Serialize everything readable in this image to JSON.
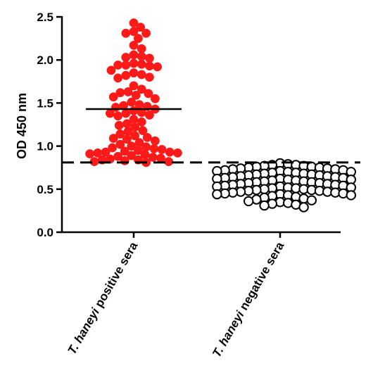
{
  "chart_data": {
    "type": "scatter",
    "subtype": "dot-plot",
    "title": "",
    "xlabel": "",
    "ylabel": "OD 450 nm",
    "ylim": [
      0,
      2.5
    ],
    "yticks": [
      0.0,
      0.5,
      1.0,
      1.5,
      2.0,
      2.5
    ],
    "ytick_labels": [
      "0.0",
      "0.5",
      "1.0",
      "1.5",
      "2.0",
      "2.5"
    ],
    "grid": false,
    "legend": "none",
    "cutoff": 0.81,
    "cutoff_style": "dashed",
    "categories": [
      {
        "italic": "T. haneyi",
        "rest": " positive sera"
      },
      {
        "italic": "T. haneyi",
        "rest": " negative sera"
      }
    ],
    "series": [
      {
        "category_index": 0,
        "marker": "filled-circle",
        "color": "#ff1a1a",
        "mean": 1.43,
        "values": [
          2.43,
          2.38,
          2.33,
          2.31,
          2.31,
          2.25,
          2.17,
          2.13,
          2.06,
          2.04,
          2.03,
          2.02,
          1.96,
          1.95,
          1.94,
          1.94,
          1.93,
          1.92,
          1.88,
          1.85,
          1.83,
          1.82,
          1.8,
          1.79,
          1.7,
          1.66,
          1.63,
          1.62,
          1.61,
          1.59,
          1.57,
          1.55,
          1.51,
          1.48,
          1.47,
          1.46,
          1.45,
          1.43,
          1.41,
          1.39,
          1.38,
          1.38,
          1.36,
          1.35,
          1.31,
          1.28,
          1.26,
          1.24,
          1.22,
          1.18,
          1.17,
          1.14,
          1.12,
          1.1,
          1.09,
          1.08,
          1.06,
          1.04,
          1.02,
          1.0,
          0.99,
          0.98,
          0.97,
          0.96,
          0.95,
          0.94,
          0.93,
          0.93,
          0.92,
          0.92,
          0.91,
          0.9,
          0.89,
          0.88,
          0.87,
          0.86,
          0.85,
          0.84,
          0.84,
          0.83,
          0.82,
          0.82,
          0.81
        ]
      },
      {
        "category_index": 1,
        "marker": "open-circle",
        "color": "#000000",
        "mean": null,
        "values": [
          0.8,
          0.79,
          0.78,
          0.78,
          0.77,
          0.77,
          0.76,
          0.76,
          0.75,
          0.75,
          0.74,
          0.74,
          0.73,
          0.73,
          0.72,
          0.72,
          0.71,
          0.71,
          0.7,
          0.7,
          0.69,
          0.69,
          0.68,
          0.68,
          0.67,
          0.67,
          0.66,
          0.66,
          0.65,
          0.65,
          0.64,
          0.64,
          0.63,
          0.63,
          0.62,
          0.62,
          0.61,
          0.61,
          0.6,
          0.6,
          0.59,
          0.59,
          0.58,
          0.58,
          0.57,
          0.57,
          0.56,
          0.56,
          0.55,
          0.55,
          0.54,
          0.54,
          0.53,
          0.53,
          0.52,
          0.52,
          0.51,
          0.51,
          0.5,
          0.5,
          0.49,
          0.49,
          0.48,
          0.48,
          0.47,
          0.47,
          0.46,
          0.46,
          0.45,
          0.45,
          0.44,
          0.44,
          0.43,
          0.43,
          0.42,
          0.41,
          0.4,
          0.39,
          0.38,
          0.37,
          0.36,
          0.35,
          0.34,
          0.33,
          0.32,
          0.31,
          0.29
        ]
      }
    ]
  }
}
